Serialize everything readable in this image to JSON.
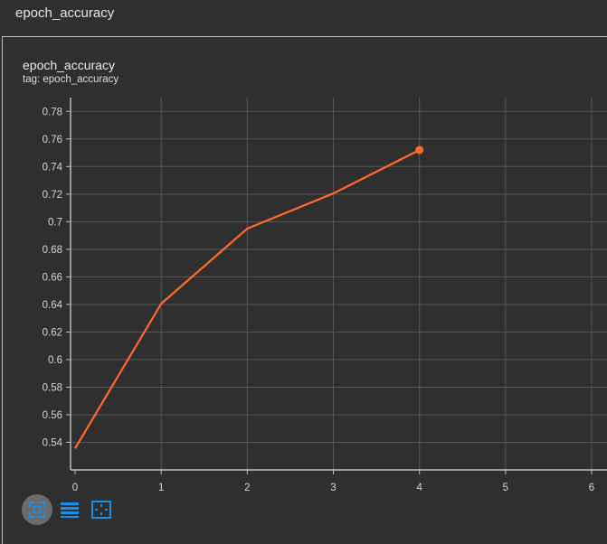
{
  "header": {
    "title": "epoch_accuracy"
  },
  "card": {
    "title": "epoch_accuracy",
    "tag": "tag: epoch_accuracy"
  },
  "colors": {
    "line": "#ff6a2b",
    "grid": "#575757",
    "axis": "#bdbdbd",
    "icon": "#1a8fe8"
  },
  "toolbar": {
    "buttons": [
      {
        "icon": "fit-domain-icon",
        "active": true
      },
      {
        "icon": "list-icon",
        "active": false
      },
      {
        "icon": "zoom-box-icon",
        "active": false
      }
    ]
  },
  "chart_data": {
    "type": "line",
    "title": "",
    "xlabel": "",
    "ylabel": "",
    "x": [
      0,
      1,
      2,
      3,
      4
    ],
    "series": [
      {
        "values": [
          0.5355,
          0.6405,
          0.695,
          0.7205,
          0.752
        ]
      }
    ],
    "xlim": [
      0,
      6
    ],
    "ylim": [
      0.52,
      0.79
    ],
    "xticks": [
      "0",
      "1",
      "2",
      "3",
      "4",
      "5",
      "6"
    ],
    "yticks": [
      "0.54",
      "0.56",
      "0.58",
      "0.6",
      "0.62",
      "0.64",
      "0.66",
      "0.68",
      "0.7",
      "0.72",
      "0.74",
      "0.76",
      "0.78"
    ],
    "grid": true,
    "legend": "none"
  }
}
